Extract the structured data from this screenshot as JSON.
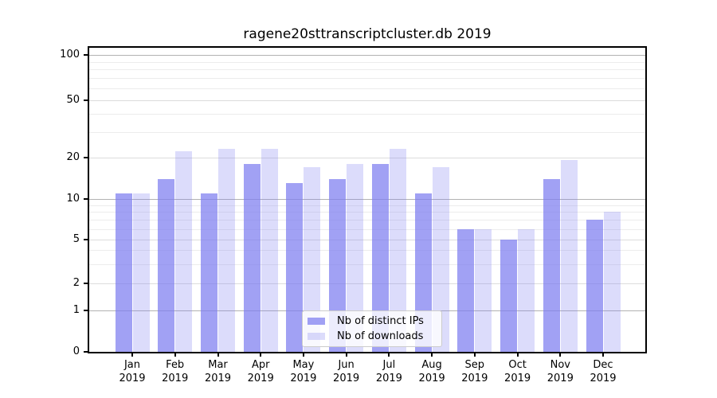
{
  "title": "ragene20sttranscriptcluster.db 2019",
  "chart_data": {
    "type": "bar",
    "title": "ragene20sttranscriptcluster.db 2019",
    "categories": [
      "Jan 2019",
      "Feb 2019",
      "Mar 2019",
      "Apr 2019",
      "May 2019",
      "Jun 2019",
      "Jul 2019",
      "Aug 2019",
      "Sep 2019",
      "Oct 2019",
      "Nov 2019",
      "Dec 2019"
    ],
    "series": [
      {
        "name": "Nb of distinct IPs",
        "values": [
          11,
          14,
          11,
          18,
          13,
          14,
          18,
          11,
          6,
          5,
          14,
          7
        ],
        "rgba": "rgba(125,125,240,0.72)",
        "color": "#a4a4f1"
      },
      {
        "name": "Nb of downloads",
        "values": [
          11,
          22,
          23,
          23,
          17,
          18,
          23,
          17,
          6,
          6,
          19,
          8
        ],
        "rgba": "rgba(125,125,240,0.27)",
        "color": "#dcdcf8"
      }
    ],
    "xlabel": "",
    "ylabel": "",
    "yscale": "log10(1+x)",
    "ylim": [
      0,
      110
    ],
    "yticks": [
      0,
      1,
      2,
      5,
      10,
      20,
      50,
      100
    ],
    "minor_yticks": [
      3,
      4,
      6,
      7,
      8,
      9,
      30,
      40,
      60,
      70,
      80,
      90
    ],
    "grid": true,
    "legend_position": "lower-center-inside"
  },
  "legend": {
    "items": [
      "Nb of distinct IPs",
      "Nb of downloads"
    ]
  },
  "colors": {
    "bar_distinct_ips": "#a4a4f1",
    "bar_downloads": "#dcdcf8",
    "grid_decade": "#b2b2b2",
    "grid_labeled": "#dcdcdc",
    "grid_minor": "#ececec",
    "axis": "#000000",
    "background": "#ffffff"
  }
}
